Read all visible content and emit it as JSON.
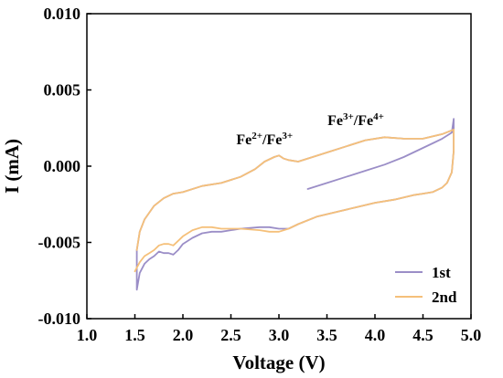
{
  "chart_data": {
    "type": "line",
    "xlabel": "Voltage (V)",
    "ylabel": "I (mA)",
    "xlim": [
      1.0,
      5.0
    ],
    "ylim": [
      -0.01,
      0.01
    ],
    "x_ticks": [
      "1.0",
      "1.5",
      "2.0",
      "2.5",
      "3.0",
      "3.5",
      "4.0",
      "4.5",
      "5.0"
    ],
    "y_ticks": [
      "-0.010",
      "-0.005",
      "0.000",
      "0.005",
      "0.010"
    ],
    "grid": false,
    "legend_position": "bottom-right",
    "annotations": [
      {
        "base1": "Fe",
        "sup1": "2+",
        "sep": "/",
        "base2": "Fe",
        "sup2": "3+",
        "x": 2.85,
        "y": 0.00145
      },
      {
        "base1": "Fe",
        "sup1": "3+",
        "sep": "/",
        "base2": "Fe",
        "sup2": "4+",
        "x": 3.8,
        "y": 0.0027
      }
    ],
    "series": [
      {
        "name": "1st",
        "color": "#9b8ec7",
        "x": [
          3.3,
          3.5,
          3.7,
          3.9,
          4.1,
          4.3,
          4.5,
          4.6,
          4.7,
          4.8,
          4.82,
          4.82,
          4.8,
          4.75,
          4.7,
          4.6,
          4.5,
          4.4,
          4.2,
          4.0,
          3.8,
          3.6,
          3.4,
          3.2,
          3.1,
          3.0,
          2.9,
          2.8,
          2.6,
          2.4,
          2.3,
          2.2,
          2.1,
          2.0,
          1.95,
          1.9,
          1.85,
          1.8,
          1.75,
          1.7,
          1.65,
          1.6,
          1.55,
          1.52,
          1.52,
          1.55,
          1.6,
          1.7,
          1.8,
          1.9,
          2.0,
          2.2,
          2.4,
          2.6,
          2.75,
          2.85,
          2.95,
          3.0,
          3.05,
          3.1,
          3.2,
          3.35,
          3.5,
          3.7,
          3.9,
          4.1,
          4.3,
          4.5,
          4.7,
          4.82
        ],
        "y": [
          -0.0015,
          -0.0011,
          -0.0007,
          -0.0003,
          0.0001,
          0.0006,
          0.0012,
          0.0015,
          0.0018,
          0.0022,
          0.0031,
          0.001,
          -0.0004,
          -0.0011,
          -0.0014,
          -0.0017,
          -0.0018,
          -0.0019,
          -0.0022,
          -0.0024,
          -0.0027,
          -0.003,
          -0.0033,
          -0.0038,
          -0.0041,
          -0.0041,
          -0.004,
          -0.004,
          -0.0041,
          -0.0043,
          -0.0043,
          -0.0044,
          -0.0047,
          -0.0051,
          -0.0055,
          -0.0058,
          -0.0057,
          -0.0057,
          -0.0056,
          -0.0059,
          -0.0061,
          -0.0064,
          -0.007,
          -0.0081,
          -0.0055,
          -0.0043,
          -0.0035,
          -0.0026,
          -0.0021,
          -0.0018,
          -0.0017,
          -0.0013,
          -0.0011,
          -0.0007,
          -0.0002,
          0.0003,
          0.0006,
          0.0007,
          0.0005,
          0.0004,
          0.0003,
          0.0006,
          0.0009,
          0.0013,
          0.0017,
          0.0019,
          0.0018,
          0.0018,
          0.0021,
          0.0024
        ]
      },
      {
        "name": "2nd",
        "color": "#f5c07a",
        "x": [
          1.52,
          1.55,
          1.6,
          1.7,
          1.8,
          1.9,
          2.0,
          2.2,
          2.4,
          2.6,
          2.75,
          2.85,
          2.95,
          3.0,
          3.05,
          3.1,
          3.2,
          3.35,
          3.5,
          3.7,
          3.9,
          4.1,
          4.3,
          4.5,
          4.7,
          4.82,
          4.82,
          4.8,
          4.75,
          4.7,
          4.6,
          4.5,
          4.4,
          4.2,
          4.0,
          3.8,
          3.6,
          3.4,
          3.2,
          3.1,
          3.0,
          2.9,
          2.8,
          2.6,
          2.4,
          2.3,
          2.2,
          2.1,
          2.0,
          1.95,
          1.9,
          1.85,
          1.8,
          1.75,
          1.7,
          1.65,
          1.6,
          1.55,
          1.5
        ],
        "y": [
          -0.0055,
          -0.0043,
          -0.0035,
          -0.0026,
          -0.0021,
          -0.0018,
          -0.0017,
          -0.0013,
          -0.0011,
          -0.0007,
          -0.0002,
          0.0003,
          0.0006,
          0.0007,
          0.0005,
          0.0004,
          0.0003,
          0.0006,
          0.0009,
          0.0013,
          0.0017,
          0.0019,
          0.0018,
          0.0018,
          0.0021,
          0.0024,
          0.001,
          -0.0004,
          -0.0011,
          -0.0014,
          -0.0017,
          -0.0018,
          -0.0019,
          -0.0022,
          -0.0024,
          -0.0027,
          -0.003,
          -0.0033,
          -0.0038,
          -0.0041,
          -0.0043,
          -0.0043,
          -0.0042,
          -0.0041,
          -0.0041,
          -0.004,
          -0.004,
          -0.0042,
          -0.0046,
          -0.0049,
          -0.0052,
          -0.0051,
          -0.0051,
          -0.0052,
          -0.0055,
          -0.0057,
          -0.0059,
          -0.0063,
          -0.0069
        ]
      }
    ]
  }
}
